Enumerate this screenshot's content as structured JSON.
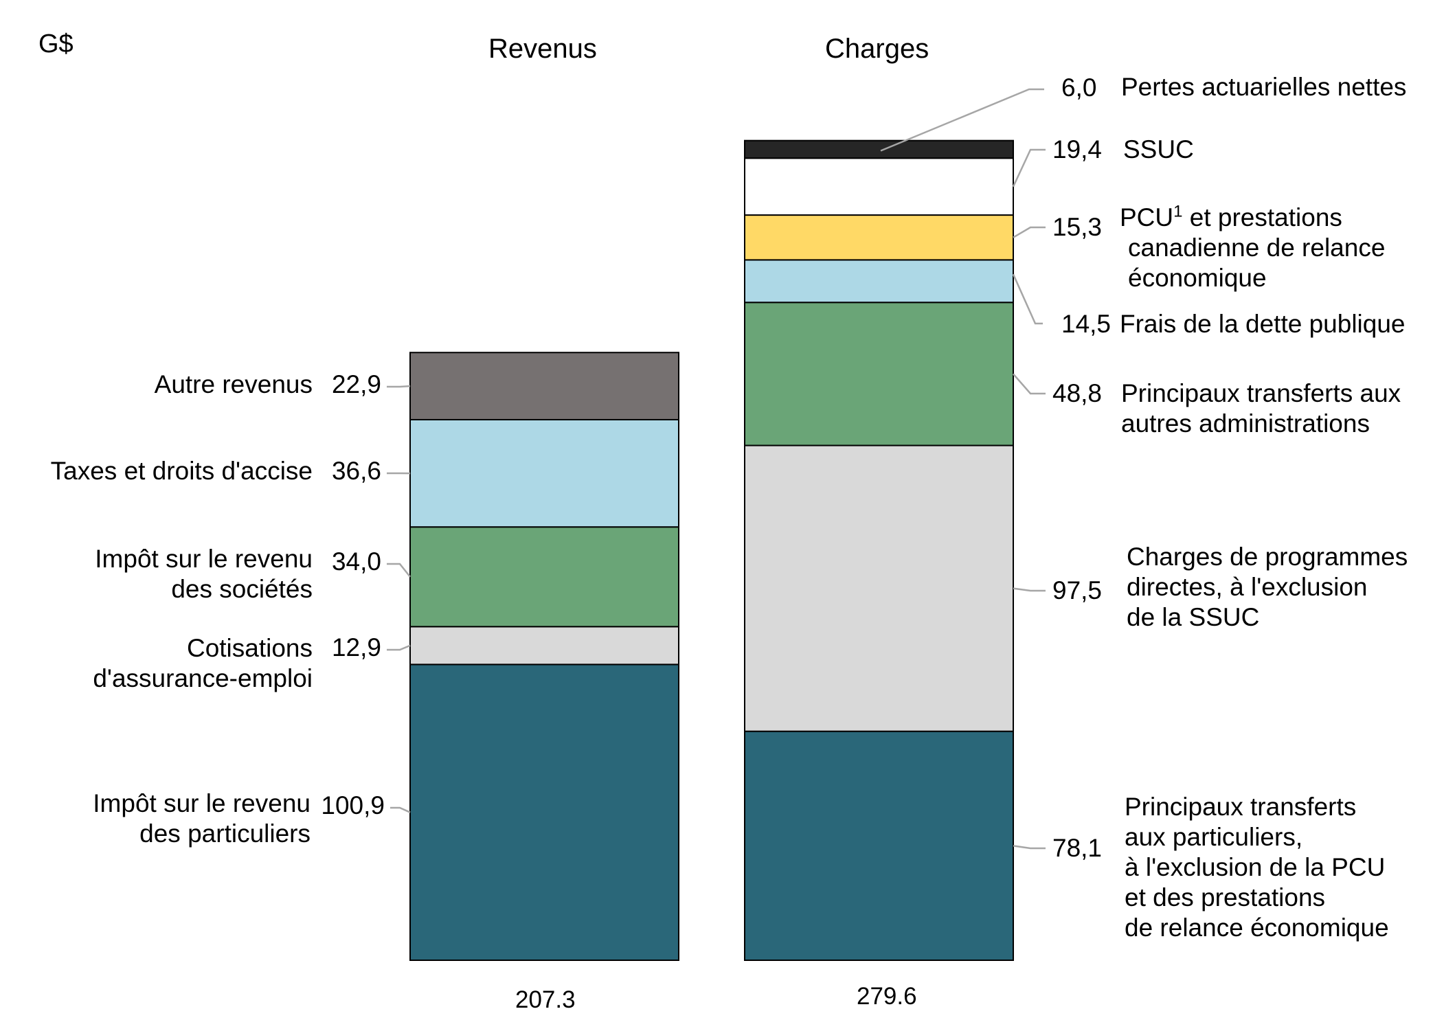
{
  "chart_data": {
    "type": "bar",
    "subtype": "stacked",
    "unit_label": "G$",
    "stacks": [
      {
        "name": "Revenus",
        "total_label": "207.3",
        "segments": [
          {
            "label": "Impôt sur le revenu des particuliers",
            "lines": [
              "Impôt sur le revenu",
              "des particuliers"
            ],
            "value": 100.9,
            "value_label": "100,9",
            "color": "#2a6779"
          },
          {
            "label": "Cotisations d'assurance-emploi",
            "lines": [
              "Cotisations",
              "d'assurance-emploi"
            ],
            "value": 12.9,
            "value_label": "12,9",
            "color": "#d9d9d9"
          },
          {
            "label": "Impôt sur le revenu des sociétés",
            "lines": [
              "Impôt sur le revenu",
              "des sociétés"
            ],
            "value": 34.0,
            "value_label": "34,0",
            "color": "#6aa577"
          },
          {
            "label": "Taxes et droits d'accise",
            "lines": [
              "Taxes et droits d'accise"
            ],
            "value": 36.6,
            "value_label": "36,6",
            "color": "#add8e6"
          },
          {
            "label": "Autre revenus",
            "lines": [
              "Autre revenus"
            ],
            "value": 22.9,
            "value_label": "22,9",
            "color": "#767171"
          }
        ]
      },
      {
        "name": "Charges",
        "total_label": "279.6",
        "segments": [
          {
            "label": "Principaux transferts aux particuliers, à l'exclusion de la PCU et des prestations de relance économique",
            "lines": [
              "Principaux transferts",
              "aux particuliers,",
              "à l'exclusion de la PCU",
              "et des prestations",
              "de relance économique"
            ],
            "value": 78.1,
            "value_label": "78,1",
            "color": "#2a6779"
          },
          {
            "label": "Charges de programmes directes, à l'exclusion de la SSUC",
            "lines": [
              "Charges de programmes",
              "directes, à l'exclusion",
              "de la SSUC"
            ],
            "value": 97.5,
            "value_label": "97,5",
            "color": "#d9d9d9"
          },
          {
            "label": "Principaux transferts aux autres administrations",
            "lines": [
              "Principaux transferts aux",
              "autres administrations"
            ],
            "value": 48.8,
            "value_label": "48,8",
            "color": "#6aa577"
          },
          {
            "label": "Frais de la dette publique",
            "lines": [
              "Frais de la dette publique"
            ],
            "value": 14.5,
            "value_label": "14,5",
            "color": "#add8e6"
          },
          {
            "label": "PCU1 et prestations canadienne de relance économique",
            "lines": [
              "PCU",
              " et prestations",
              "canadienne de relance",
              "économique"
            ],
            "sup": "1",
            "value": 15.3,
            "value_label": "15,3",
            "color": "#ffd966"
          },
          {
            "label": "SSUC",
            "lines": [
              "SSUC"
            ],
            "value": 19.4,
            "value_label": "19,4",
            "color": "#ffffff"
          },
          {
            "label": "Pertes actuarielles nettes",
            "lines": [
              "Pertes actuarielles nettes"
            ],
            "value": 6.0,
            "value_label": "6,0",
            "color": "#262626"
          }
        ]
      }
    ]
  }
}
